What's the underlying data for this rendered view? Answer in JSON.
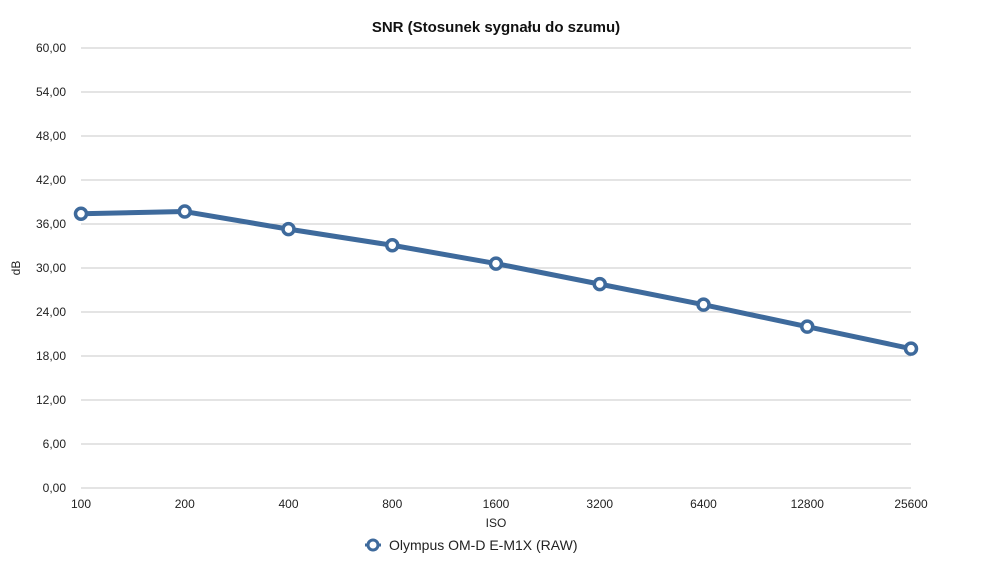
{
  "chart_data": {
    "type": "line",
    "title": "SNR (Stosunek sygnału do szumu)",
    "xlabel": "ISO",
    "ylabel": "dB",
    "categories": [
      "100",
      "200",
      "400",
      "800",
      "1600",
      "3200",
      "6400",
      "12800",
      "25600"
    ],
    "y_ticks": [
      "0,00",
      "6,00",
      "12,00",
      "18,00",
      "24,00",
      "30,00",
      "36,00",
      "42,00",
      "48,00",
      "54,00",
      "60,00"
    ],
    "ylim": [
      0,
      60
    ],
    "grid": true,
    "legend_position": "bottom",
    "series": [
      {
        "name": "Olympus OM-D E-M1X (RAW)",
        "color": "#3e6a9c",
        "values": [
          37.4,
          37.7,
          35.3,
          33.1,
          30.6,
          27.8,
          25.0,
          22.0,
          19.0
        ]
      }
    ]
  }
}
